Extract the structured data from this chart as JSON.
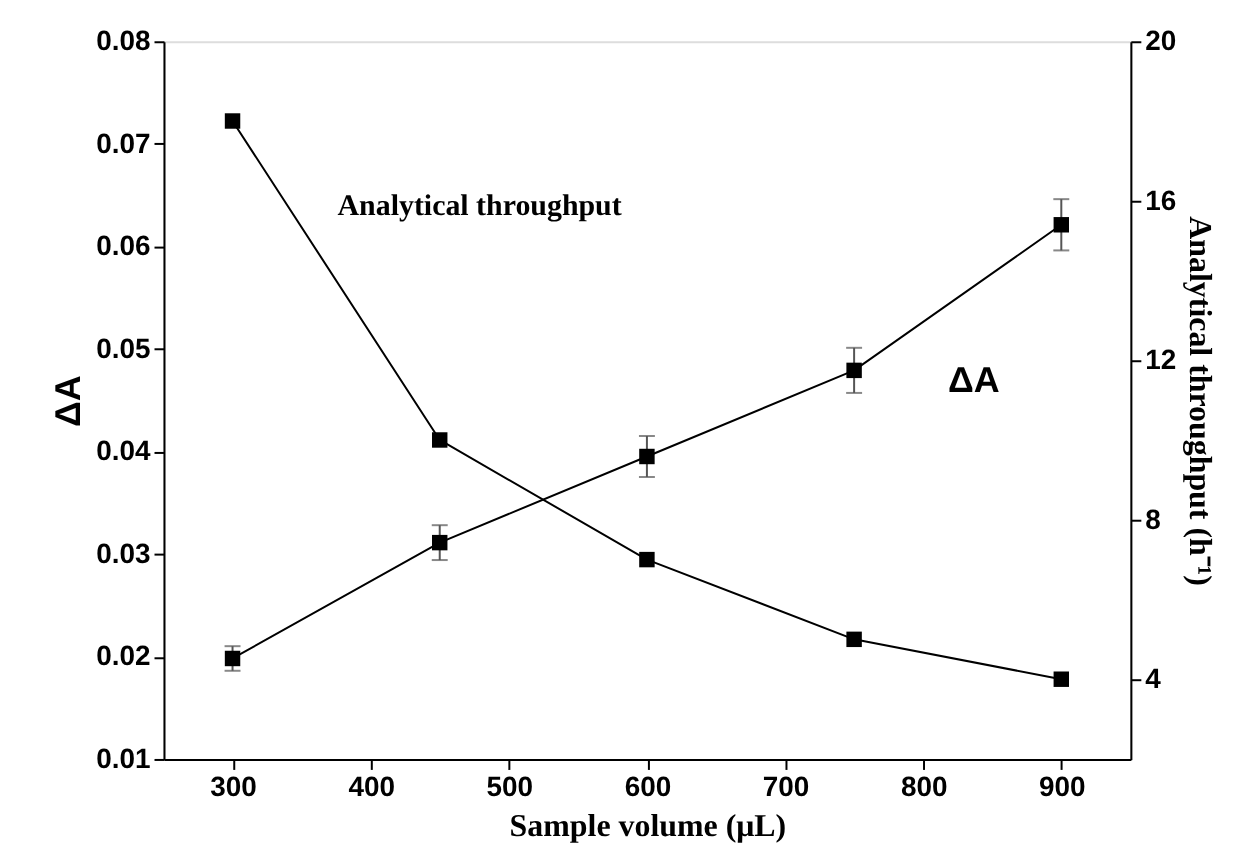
{
  "chart_data": {
    "type": "line",
    "xlabel": "Sample volume (μL)",
    "ylabel": "ΔA",
    "y2label": "Analytical throughput (h⁻¹)",
    "x": [
      300,
      450,
      600,
      750,
      900
    ],
    "series": [
      {
        "name": "ΔA",
        "color": "#000000",
        "values": [
          0.0198,
          0.0311,
          0.0395,
          0.0479,
          0.0621
        ],
        "errors": [
          0.0012,
          0.0017,
          0.002,
          0.0022,
          0.0025
        ]
      },
      {
        "name": "Analytical throughput",
        "color": "#000000",
        "axis": "y2",
        "values": [
          18,
          10,
          7,
          5,
          4
        ]
      }
    ],
    "xlim": [
      250,
      950
    ],
    "xticks": [
      300,
      400,
      500,
      600,
      700,
      800,
      900
    ],
    "ylim": [
      0.01,
      0.08
    ],
    "yticks": [
      0.01,
      0.02,
      0.03,
      0.04,
      0.05,
      0.06,
      0.07,
      0.08
    ],
    "y2lim": [
      2,
      20
    ],
    "y2ticks": [
      4,
      8,
      12,
      16,
      20
    ],
    "grid": false,
    "legend": false,
    "marker": "square",
    "line_style": "solid"
  }
}
